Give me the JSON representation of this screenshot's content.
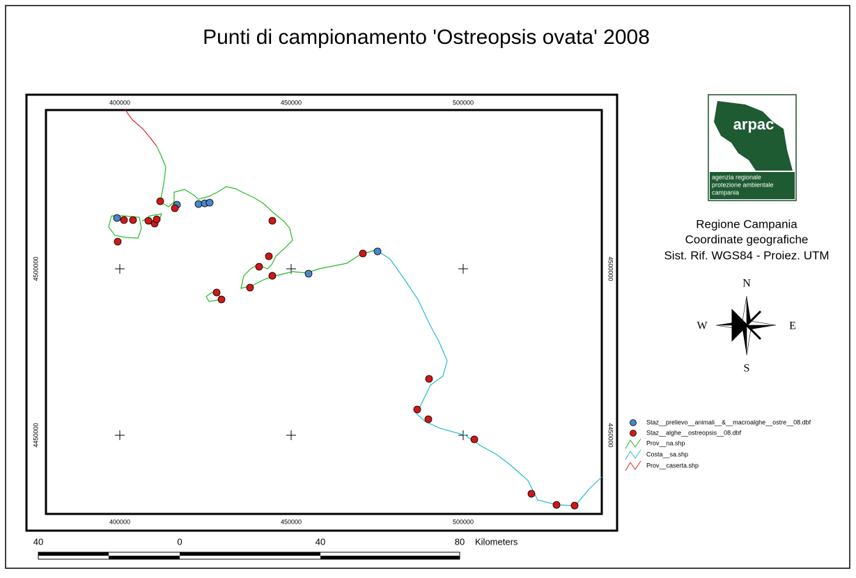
{
  "title": "Punti di campionamento 'Ostreopsis ovata' 2008",
  "grid_labels": {
    "top": [
      "400000",
      "450000",
      "500000"
    ],
    "bottom": [
      "400000",
      "450000",
      "500000"
    ],
    "left": [
      "4500000",
      "4450000"
    ],
    "right": [
      "4500000",
      "4450000"
    ]
  },
  "logo": {
    "name": "arpac",
    "lines": [
      "agenzia regionale",
      "protezione ambientale",
      "campania"
    ]
  },
  "info": [
    "Regione Campania",
    "Coordinate geografiche",
    "Sist. Rif. WGS84 - Proiez. UTM"
  ],
  "compass": {
    "n": "N",
    "s": "S",
    "w": "W",
    "e": "E"
  },
  "legend": [
    "Staz__prelievo__animali__&__macroalghe__ostre__08.dbf",
    "Staz__alghe__ostreopsis__08.dbf",
    "Prov__na.shp",
    "Costa__sa.shp",
    "Prov__caserta.shp"
  ],
  "scale": {
    "labels": [
      "40",
      "0",
      "40",
      "80"
    ],
    "unit": "Kilometers"
  }
}
